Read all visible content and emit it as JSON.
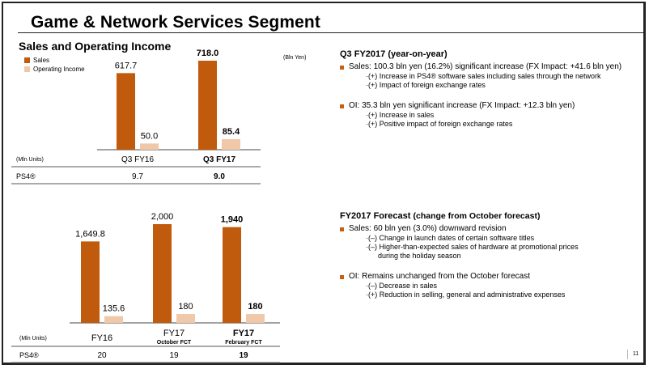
{
  "header": {
    "title": "Game & Network Services Segment",
    "page_number": "11"
  },
  "left": {
    "subtitle": "Sales and Operating Income",
    "unit": "(Bln Yen)",
    "legend": [
      {
        "label": "Sales",
        "color": "#c05a0c"
      },
      {
        "label": "Operating Income",
        "color": "#f0c8a8"
      }
    ]
  },
  "chart_data": [
    {
      "type": "bar",
      "title": "Sales and Operating Income (Q3)",
      "unit": "Bln Yen",
      "categories": [
        "Q3 FY16",
        "Q3 FY17"
      ],
      "category_bold": [
        false,
        true
      ],
      "series": [
        {
          "name": "Sales",
          "values": [
            617.7,
            718.0
          ],
          "labels": [
            "617.7",
            "718.0"
          ]
        },
        {
          "name": "Operating Income",
          "values": [
            50.0,
            85.4
          ],
          "labels": [
            "50.0",
            "85.4"
          ]
        }
      ],
      "table": {
        "unit_label": "(Mln Units)",
        "row_label": "PS4®",
        "values": [
          "9.7",
          "9.0"
        ]
      },
      "legend": "top-left"
    },
    {
      "type": "bar",
      "title": "Sales and Operating Income (Full Year)",
      "unit": "Bln Yen",
      "categories": [
        "FY16",
        "FY17 October FCT",
        "FY17 February FCT"
      ],
      "category_main": [
        "FY16",
        "FY17",
        "FY17"
      ],
      "category_sub": [
        "",
        "October FCT",
        "February FCT"
      ],
      "category_bold": [
        false,
        false,
        true
      ],
      "series": [
        {
          "name": "Sales",
          "values": [
            1649.8,
            2000,
            1940
          ],
          "labels": [
            "1,649.8",
            "2,000",
            "1,940"
          ]
        },
        {
          "name": "Operating Income",
          "values": [
            135.6,
            180,
            180
          ],
          "labels": [
            "135.6",
            "180",
            "180"
          ]
        }
      ],
      "table": {
        "unit_label": "(Mln Units)",
        "row_label": "PS4®",
        "values": [
          "20",
          "19",
          "19"
        ]
      }
    }
  ],
  "q3": {
    "heading": "Q3 FY2017 (year-on-year)",
    "bullets": [
      {
        "text": "Sales: 100.3 bln yen (16.2%) significant increase (FX Impact: +41.6 bln yen)",
        "subs": [
          "·(+) Increase in PS4® software sales including sales through the network",
          "·(+) Impact of foreign exchange rates"
        ]
      },
      {
        "text": "OI: 35.3 bln yen significant increase (FX Impact: +12.3 bln yen)",
        "subs": [
          "·(+) Increase in sales",
          "·(+) Positive impact of foreign exchange rates"
        ]
      }
    ]
  },
  "fy": {
    "heading": "FY2017 Forecast",
    "heading_note": "(change from October forecast)",
    "bullets": [
      {
        "text": "Sales: 60 bln yen (3.0%) downward revision",
        "subs": [
          "·(–) Change in launch dates of certain software titles",
          "·(–) Higher-than-expected sales of hardware at promotional prices",
          "    during the holiday season"
        ]
      },
      {
        "text": "OI: Remains unchanged from the October forecast",
        "subs": [
          "·(–) Decrease in sales",
          "·(+) Reduction in selling, general and administrative expenses"
        ]
      }
    ]
  }
}
